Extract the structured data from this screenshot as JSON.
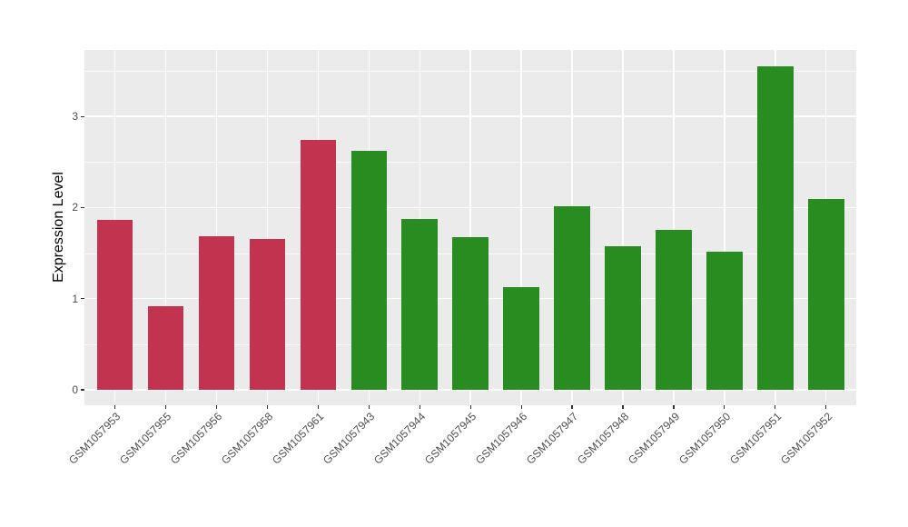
{
  "colors": {
    "figure_background": "#FFFFFF",
    "plot_background": "#EBEBEB",
    "gridline": "#FFFFFF",
    "tick_mark": "#333333",
    "tick_label": "#4D4D4D",
    "axis_title": "#000000",
    "red_bar": "#C2334F",
    "green_bar": "#288C21"
  },
  "chart_data": {
    "type": "bar",
    "title": "",
    "xlabel": "",
    "ylabel": "Expression Level",
    "ylim": [
      0,
      3.72
    ],
    "yticks": [
      0,
      1,
      2,
      3
    ],
    "grid": "on",
    "legend": "none",
    "categories": [
      "GSM1057953",
      "GSM1057955",
      "GSM1057956",
      "GSM1057958",
      "GSM1057961",
      "GSM1057943",
      "GSM1057944",
      "GSM1057945",
      "GSM1057946",
      "GSM1057947",
      "GSM1057948",
      "GSM1057949",
      "GSM1057950",
      "GSM1057951",
      "GSM1057952"
    ],
    "values": [
      1.86,
      0.92,
      1.69,
      1.66,
      2.74,
      2.62,
      1.87,
      1.68,
      1.13,
      2.01,
      1.58,
      1.75,
      1.52,
      3.55,
      2.09
    ],
    "bar_colors": [
      "#C2334F",
      "#C2334F",
      "#C2334F",
      "#C2334F",
      "#C2334F",
      "#288C21",
      "#288C21",
      "#288C21",
      "#288C21",
      "#288C21",
      "#288C21",
      "#288C21",
      "#288C21",
      "#288C21",
      "#288C21"
    ],
    "groups": [
      {
        "color": "#C2334F",
        "categories": [
          "GSM1057953",
          "GSM1057955",
          "GSM1057956",
          "GSM1057958",
          "GSM1057961"
        ]
      },
      {
        "color": "#288C21",
        "categories": [
          "GSM1057943",
          "GSM1057944",
          "GSM1057945",
          "GSM1057946",
          "GSM1057947",
          "GSM1057948",
          "GSM1057949",
          "GSM1057950",
          "GSM1057951",
          "GSM1057952"
        ]
      }
    ]
  }
}
